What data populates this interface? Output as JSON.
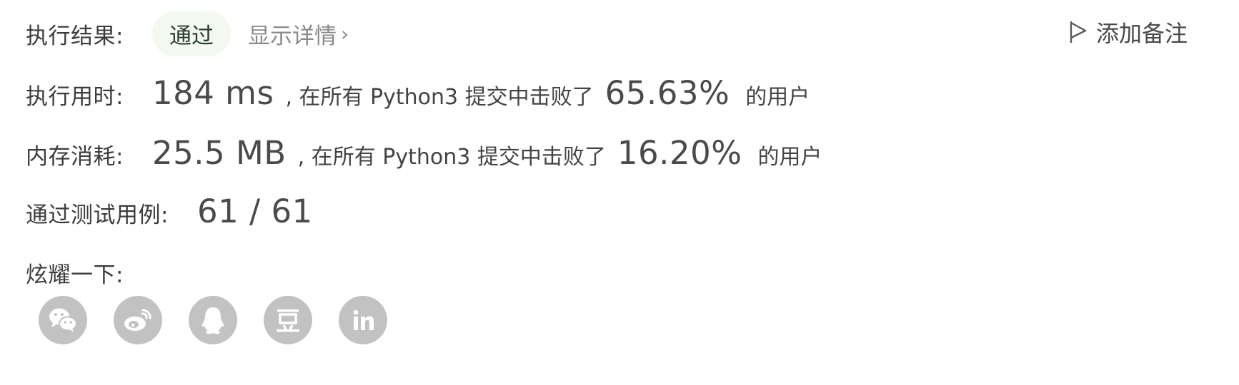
{
  "result": {
    "label": "执行结果:",
    "status": "通过",
    "details_link": "显示详情",
    "add_note": "添加备注"
  },
  "runtime": {
    "label": "执行用时:",
    "value": "184 ms",
    "mid_text": ", 在所有 Python3 提交中击败了",
    "percent": "65.63%",
    "suffix": "的用户"
  },
  "memory": {
    "label": "内存消耗:",
    "value": "25.5 MB",
    "mid_text": ", 在所有 Python3 提交中击败了",
    "percent": "16.20%",
    "suffix": "的用户"
  },
  "tests": {
    "label": "通过测试用例:",
    "value": "61 / 61"
  },
  "share": {
    "label": "炫耀一下:",
    "items": [
      {
        "icon": "wechat-icon"
      },
      {
        "icon": "weibo-icon"
      },
      {
        "icon": "qq-icon"
      },
      {
        "icon": "douban-icon",
        "glyph": "豆"
      },
      {
        "icon": "linkedin-icon",
        "glyph": "in"
      }
    ]
  },
  "colors": {
    "pill_bg": "#f3f8f1",
    "icon_bg": "#c2c2c2",
    "muted_text": "#8a8a8a"
  }
}
